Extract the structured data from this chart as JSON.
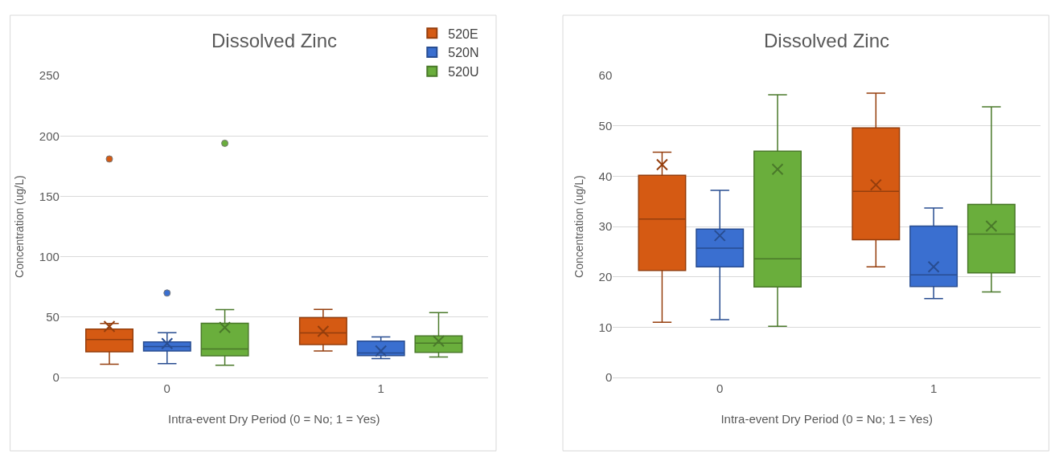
{
  "chart_data": [
    {
      "type": "box",
      "title": "Dissolved Zinc",
      "xlabel": "Intra-event Dry Period (0 = No; 1 = Yes)",
      "ylabel": "Concentration (ug/L)",
      "categories": [
        "0",
        "1"
      ],
      "ylim": [
        0,
        250
      ],
      "yticks": [
        0,
        50,
        100,
        150,
        200,
        250
      ],
      "grid": "y",
      "legend": "top right",
      "marker": "cross",
      "series": [
        {
          "name": "520E",
          "color": "#d55a13",
          "boxes": [
            {
              "low": 11,
              "q1": 21.3,
              "median": 31.5,
              "q3": 40.2,
              "high": 44.8,
              "mean": 42.3,
              "outliers": [
                181
              ]
            },
            {
              "low": 22,
              "q1": 27.4,
              "median": 37,
              "q3": 49.6,
              "high": 56.5,
              "mean": 38.3
            }
          ]
        },
        {
          "name": "520N",
          "color": "#3a6fd0",
          "boxes": [
            {
              "low": 11.5,
              "q1": 22,
              "median": 25.7,
              "q3": 29.5,
              "high": 37.2,
              "mean": 28.2,
              "outliers": [
                70
              ]
            },
            {
              "low": 15.7,
              "q1": 18.1,
              "median": 20.4,
              "q3": 30.1,
              "high": 33.7,
              "mean": 22
            }
          ]
        },
        {
          "name": "520U",
          "color": "#6aae3c",
          "boxes": [
            {
              "low": 10.2,
              "q1": 18,
              "median": 23.6,
              "q3": 45,
              "high": 56.2,
              "mean": 41.4,
              "outliers": [
                194
              ]
            },
            {
              "low": 17,
              "q1": 20.8,
              "median": 28.5,
              "q3": 34.4,
              "high": 53.8,
              "mean": 30.1
            }
          ]
        }
      ]
    },
    {
      "type": "box",
      "title": "Dissolved Zinc",
      "xlabel": "Intra-event Dry Period (0 = No; 1 = Yes)",
      "ylabel": "Concentration (ug/L)",
      "categories": [
        "0",
        "1"
      ],
      "ylim": [
        0,
        60
      ],
      "yticks": [
        0,
        10,
        20,
        30,
        40,
        50,
        60
      ],
      "grid": "y",
      "marker": "cross",
      "series": [
        {
          "color": "#d55a13",
          "boxes": [
            {
              "low": 11,
              "q1": 21.3,
              "median": 31.5,
              "q3": 40.2,
              "high": 44.8,
              "mean": 42.3
            },
            {
              "low": 22,
              "q1": 27.4,
              "median": 37,
              "q3": 49.6,
              "high": 56.5,
              "mean": 38.3
            }
          ]
        },
        {
          "color": "#3a6fd0",
          "boxes": [
            {
              "low": 11.5,
              "q1": 22,
              "median": 25.7,
              "q3": 29.5,
              "high": 37.2,
              "mean": 28.2
            },
            {
              "low": 15.7,
              "q1": 18.1,
              "median": 20.4,
              "q3": 30.1,
              "high": 33.7,
              "mean": 22
            }
          ]
        },
        {
          "color": "#6aae3c",
          "boxes": [
            {
              "low": 10.2,
              "q1": 18,
              "median": 23.6,
              "q3": 45,
              "high": 56.2,
              "mean": 41.4
            },
            {
              "low": 17,
              "q1": 20.8,
              "median": 28.5,
              "q3": 34.4,
              "high": 53.8,
              "mean": 30.1
            }
          ]
        }
      ]
    }
  ]
}
